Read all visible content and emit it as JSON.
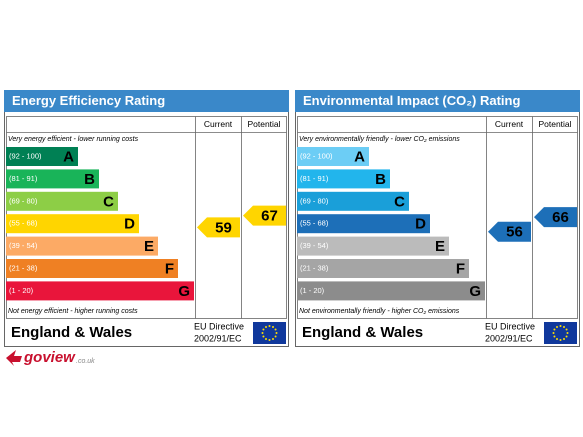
{
  "panels": [
    {
      "title": "Energy Efficiency Rating",
      "header_color": "#3a88c9",
      "columns": [
        "Current",
        "Potential"
      ],
      "top_note": "Very energy efficient - lower running costs",
      "bands": [
        {
          "range": "(92 - 100)",
          "letter": "A",
          "color": "#008054"
        },
        {
          "range": "(81 - 91)",
          "letter": "B",
          "color": "#19b459"
        },
        {
          "range": "(69 - 80)",
          "letter": "C",
          "color": "#8dce46"
        },
        {
          "range": "(55 - 68)",
          "letter": "D",
          "color": "#ffd500"
        },
        {
          "range": "(39 - 54)",
          "letter": "E",
          "color": "#fcaa65"
        },
        {
          "range": "(21 - 38)",
          "letter": "F",
          "color": "#ef8023"
        },
        {
          "range": "(1 - 20)",
          "letter": "G",
          "color": "#e9153b"
        }
      ],
      "bottom_note": "Not energy efficient - higher running costs",
      "current": 59,
      "potential": 67,
      "arrow_color": "#ffd500",
      "arrow_text_color": "#000000",
      "footer": "England & Wales",
      "directive": [
        "EU Directive",
        "2002/91/EC"
      ]
    },
    {
      "title": "Environmental Impact (CO₂) Rating",
      "header_color": "#3a88c9",
      "columns": [
        "Current",
        "Potential"
      ],
      "top_note": "Very environmentally friendly - lower CO₂ emissions",
      "bands": [
        {
          "range": "(92 - 100)",
          "letter": "A",
          "color": "#6ccdf5"
        },
        {
          "range": "(81 - 91)",
          "letter": "B",
          "color": "#22b5ec"
        },
        {
          "range": "(69 - 80)",
          "letter": "C",
          "color": "#1a9fd9"
        },
        {
          "range": "(55 - 68)",
          "letter": "D",
          "color": "#1d6fb8"
        },
        {
          "range": "(39 - 54)",
          "letter": "E",
          "color": "#bbbbbb"
        },
        {
          "range": "(21 - 38)",
          "letter": "F",
          "color": "#a5a5a5"
        },
        {
          "range": "(1 - 20)",
          "letter": "G",
          "color": "#8c8c8c"
        }
      ],
      "bottom_note": "Not environmentally friendly - higher CO₂ emissions",
      "current": 56,
      "potential": 66,
      "arrow_color": "#1d6fb8",
      "arrow_text_color": "#000000",
      "footer": "England & Wales",
      "directive": [
        "EU Directive",
        "2002/91/EC"
      ]
    }
  ],
  "logo": {
    "text": "goview",
    "suffix": ".co.uk"
  }
}
